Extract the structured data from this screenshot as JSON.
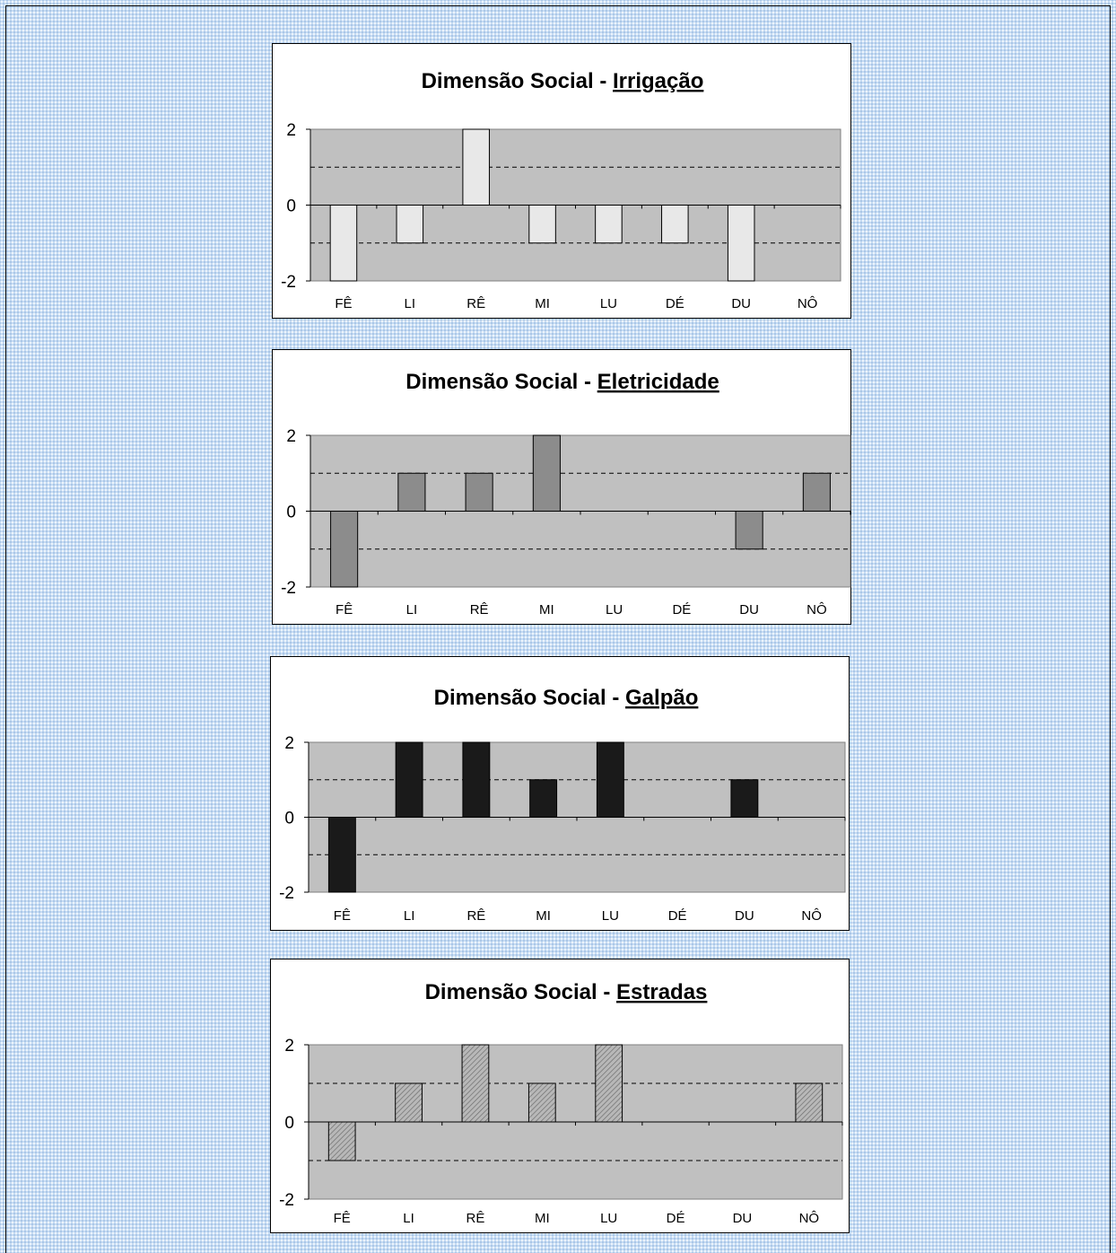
{
  "chart_data": [
    {
      "type": "bar",
      "title_prefix": "Dimensão Social - ",
      "title_topic": "Irrigação",
      "categories": [
        "FÊ",
        "LI",
        "RÊ",
        "MI",
        "LU",
        "DÉ",
        "DU",
        "NÔ"
      ],
      "values": [
        -2,
        -1,
        2,
        -1,
        -1,
        -1,
        -2,
        0
      ],
      "ylim": [
        -2,
        2
      ],
      "yticks": [
        "2",
        "0",
        "-2"
      ],
      "bar_color": "#e8e8e8",
      "plot_bg": "#c0c0c0",
      "gridlines": [
        1,
        -1
      ],
      "grid": "dashed"
    },
    {
      "type": "bar",
      "title_prefix": "Dimensão Social - ",
      "title_topic": "Eletricidade",
      "categories": [
        "FÊ",
        "LI",
        "RÊ",
        "MI",
        "LU",
        "DÉ",
        "DU",
        "NÔ"
      ],
      "values": [
        -2,
        1,
        1,
        2,
        0,
        0,
        -1,
        1
      ],
      "ylim": [
        -2,
        2
      ],
      "yticks": [
        "2",
        "0",
        "-2"
      ],
      "bar_color": "#8c8c8c",
      "plot_bg": "#c0c0c0",
      "gridlines": [
        1,
        -1
      ],
      "grid": "dashed"
    },
    {
      "type": "bar",
      "title_prefix": "Dimensão Social - ",
      "title_topic": "Galpão",
      "categories": [
        "FÊ",
        "LI",
        "RÊ",
        "MI",
        "LU",
        "DÉ",
        "DU",
        "NÔ"
      ],
      "values": [
        -2,
        2,
        2,
        1,
        2,
        0,
        1,
        0
      ],
      "ylim": [
        -2,
        2
      ],
      "yticks": [
        "2",
        "0",
        "-2"
      ],
      "bar_color": "#1a1a1a",
      "plot_bg": "#c0c0c0",
      "gridlines": [
        1,
        -1
      ],
      "grid": "dashed"
    },
    {
      "type": "bar",
      "title_prefix": "Dimensão Social - ",
      "title_topic": "Estradas",
      "categories": [
        "FÊ",
        "LI",
        "RÊ",
        "MI",
        "LU",
        "DÉ",
        "DU",
        "NÔ"
      ],
      "values": [
        -1,
        1,
        2,
        1,
        2,
        0,
        0,
        1
      ],
      "ylim": [
        -2,
        2
      ],
      "yticks": [
        "2",
        "0",
        "-2"
      ],
      "bar_color": "#b8b8b8",
      "bar_pattern": "hatched",
      "plot_bg": "#c0c0c0",
      "gridlines": [
        1,
        -1
      ],
      "grid": "dashed"
    }
  ]
}
